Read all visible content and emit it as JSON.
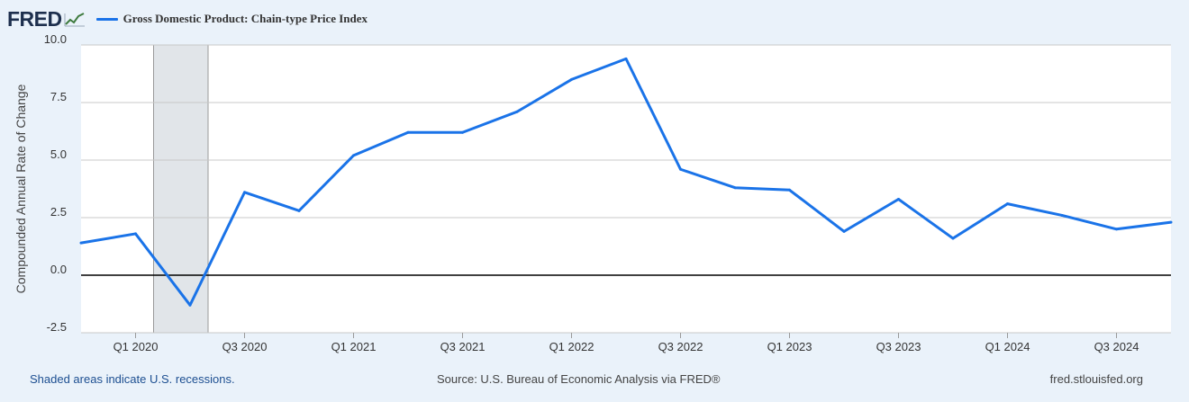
{
  "header": {
    "logo": "FRED",
    "legend_label": "Gross Domestic Product: Chain-type Price Index",
    "series_color": "#1a73e8"
  },
  "footer": {
    "recession_note": "Shaded areas indicate U.S. recessions.",
    "source": "Source: U.S. Bureau of Economic Analysis via FRED®",
    "site": "fred.stlouisfed.org"
  },
  "chart_data": {
    "type": "line",
    "title": "",
    "xlabel": "",
    "ylabel": "Compounded Annual Rate of Change",
    "ylim": [
      -2.5,
      10.0
    ],
    "yticks": [
      "10.0",
      "7.5",
      "5.0",
      "2.5",
      "0.0",
      "-2.5"
    ],
    "xticks": [
      "Q1 2020",
      "Q3 2020",
      "Q1 2021",
      "Q3 2021",
      "Q1 2022",
      "Q3 2022",
      "Q1 2023",
      "Q3 2023",
      "Q1 2024",
      "Q3 2024"
    ],
    "grid": true,
    "recession_shading": [
      "2020-Q1",
      "2020-Q2"
    ],
    "series": [
      {
        "name": "Gross Domestic Product: Chain-type Price Index",
        "x": [
          "2019-Q4",
          "2020-Q1",
          "2020-Q2",
          "2020-Q3",
          "2020-Q4",
          "2021-Q1",
          "2021-Q2",
          "2021-Q3",
          "2021-Q4",
          "2022-Q1",
          "2022-Q2",
          "2022-Q3",
          "2022-Q4",
          "2023-Q1",
          "2023-Q2",
          "2023-Q3",
          "2023-Q4",
          "2024-Q1",
          "2024-Q2",
          "2024-Q3",
          "2024-Q4"
        ],
        "values": [
          1.4,
          1.8,
          -1.3,
          3.6,
          2.8,
          5.2,
          6.2,
          6.2,
          7.1,
          8.5,
          9.4,
          4.6,
          3.8,
          3.7,
          1.9,
          3.3,
          1.6,
          3.1,
          2.6,
          2.0,
          2.3
        ]
      }
    ]
  }
}
